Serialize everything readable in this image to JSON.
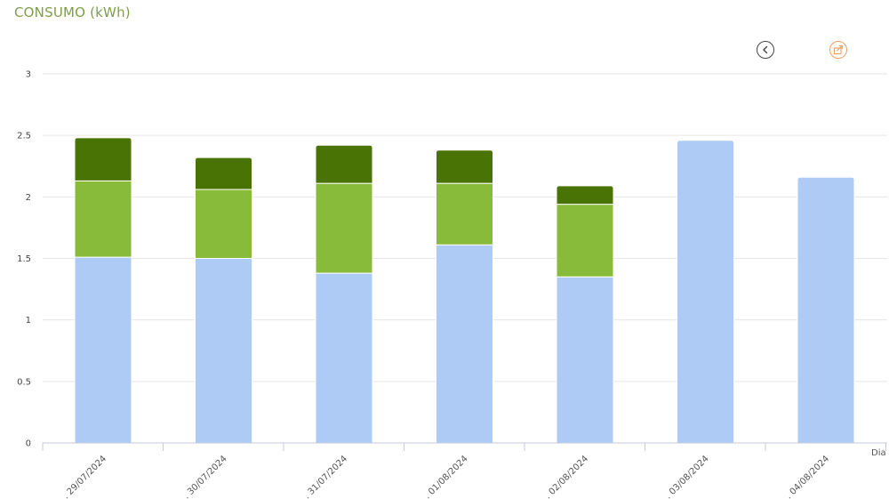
{
  "header": {
    "title": "CONSUMO (kWh)",
    "back_icon": "chevron-left-icon",
    "share_icon": "share-icon"
  },
  "chart_data": {
    "type": "bar",
    "stacked": true,
    "title": "CONSUMO (kWh)",
    "xlabel": "Dia",
    "ylabel": "",
    "ylim": [
      0,
      3
    ],
    "yticks": [
      "0",
      "0.5",
      "1",
      "1.5",
      "2",
      "2.5",
      "3"
    ],
    "categories": [
      "29/07/2024",
      "30/07/2024",
      "31/07/2024",
      "01/08/2024",
      "02/08/2024",
      "03/08/2024",
      "04/08/2024"
    ],
    "category_labels": [
      "... 29/07/2024",
      "... 30/07/2024",
      "... 31/07/2024",
      "... 01/08/2024",
      "... 02/08/2024",
      "... 03/08/2024",
      "... 04/08/2024"
    ],
    "series": [
      {
        "color": "#aecbf5",
        "values": [
          1.51,
          1.5,
          1.38,
          1.61,
          1.35,
          2.46,
          2.16
        ]
      },
      {
        "color": "#89bb3a",
        "values": [
          0.62,
          0.56,
          0.73,
          0.5,
          0.59,
          0,
          0
        ]
      },
      {
        "color": "#4a7305",
        "values": [
          0.35,
          0.26,
          0.31,
          0.27,
          0.15,
          0,
          0
        ]
      }
    ],
    "grid": true,
    "legend": "none"
  }
}
